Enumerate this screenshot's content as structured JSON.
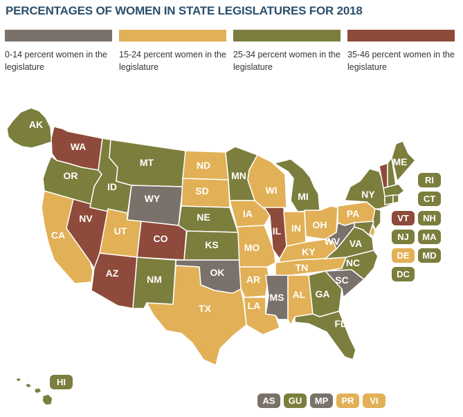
{
  "title": "PERCENTAGES OF WOMEN IN STATE LEGISLATURES FOR 2018",
  "colors": {
    "c1": "#7a716a",
    "c2": "#e2b056",
    "c3": "#7b7e3d",
    "c4": "#8e4a3a"
  },
  "legend": [
    {
      "label": "0-14 percent women in the legislature",
      "color": "#7a716a"
    },
    {
      "label": "15-24 percent women in the legislature",
      "color": "#e2b056"
    },
    {
      "label": "25-34 percent women in the legislature",
      "color": "#7b7e3d"
    },
    {
      "label": "35-46 percent women in the legislature",
      "color": "#8e4a3a"
    }
  ],
  "states": {
    "AK": {
      "label": "AK",
      "category": 3
    },
    "WA": {
      "label": "WA",
      "category": 4
    },
    "OR": {
      "label": "OR",
      "category": 3
    },
    "CA": {
      "label": "CA",
      "category": 2
    },
    "NV": {
      "label": "NV",
      "category": 4
    },
    "ID": {
      "label": "ID",
      "category": 3
    },
    "MT": {
      "label": "MT",
      "category": 3
    },
    "WY": {
      "label": "WY",
      "category": 1
    },
    "UT": {
      "label": "UT",
      "category": 2
    },
    "AZ": {
      "label": "AZ",
      "category": 4
    },
    "CO": {
      "label": "CO",
      "category": 4
    },
    "NM": {
      "label": "NM",
      "category": 3
    },
    "ND": {
      "label": "ND",
      "category": 2
    },
    "SD": {
      "label": "SD",
      "category": 2
    },
    "NE": {
      "label": "NE",
      "category": 3
    },
    "KS": {
      "label": "KS",
      "category": 3
    },
    "OK": {
      "label": "OK",
      "category": 1
    },
    "TX": {
      "label": "TX",
      "category": 2
    },
    "MN": {
      "label": "MN",
      "category": 3
    },
    "IA": {
      "label": "IA",
      "category": 2
    },
    "MO": {
      "label": "MO",
      "category": 2
    },
    "AR": {
      "label": "AR",
      "category": 2
    },
    "LA": {
      "label": "LA",
      "category": 2
    },
    "WI": {
      "label": "WI",
      "category": 2
    },
    "IL": {
      "label": "IL",
      "category": 4
    },
    "MI": {
      "label": "MI",
      "category": 3
    },
    "IN": {
      "label": "IN",
      "category": 2
    },
    "OH": {
      "label": "OH",
      "category": 2
    },
    "KY": {
      "label": "KY",
      "category": 2
    },
    "TN": {
      "label": "TN",
      "category": 2
    },
    "MS": {
      "label": "MS",
      "category": 1
    },
    "AL": {
      "label": "AL",
      "category": 2
    },
    "GA": {
      "label": "GA",
      "category": 3
    },
    "FL": {
      "label": "FL",
      "category": 3
    },
    "SC": {
      "label": "SC",
      "category": 1
    },
    "NC": {
      "label": "NC",
      "category": 3
    },
    "VA": {
      "label": "VA",
      "category": 3
    },
    "WV": {
      "label": "WV",
      "category": 1
    },
    "PA": {
      "label": "PA",
      "category": 2
    },
    "NY": {
      "label": "NY",
      "category": 3
    },
    "ME": {
      "label": "ME",
      "category": 3
    },
    "VT": {
      "label": "VT",
      "category": 4
    },
    "NH": {
      "label": "NH",
      "category": 3
    },
    "RI": {
      "label": "RI",
      "category": 3
    },
    "CT": {
      "label": "CT",
      "category": 3
    },
    "NJ": {
      "label": "NJ",
      "category": 3
    },
    "MA": {
      "label": "MA",
      "category": 3
    },
    "DE": {
      "label": "DE",
      "category": 2
    },
    "MD": {
      "label": "MD",
      "category": 3
    },
    "DC": {
      "label": "DC",
      "category": 3
    },
    "HI": {
      "label": "HI",
      "category": 3
    }
  },
  "territories": {
    "AS": {
      "label": "AS",
      "category": 1
    },
    "GU": {
      "label": "GU",
      "category": 3
    },
    "MP": {
      "label": "MP",
      "category": 1
    },
    "PR": {
      "label": "PR",
      "category": 2
    },
    "VI": {
      "label": "VI",
      "category": 2
    }
  }
}
